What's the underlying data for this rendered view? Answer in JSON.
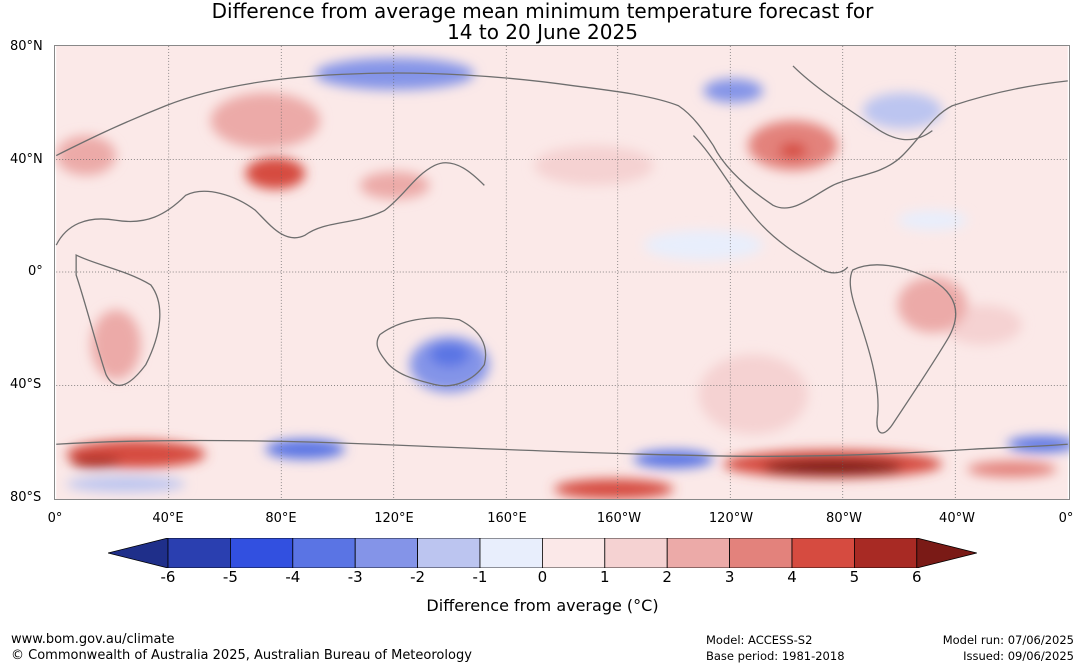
{
  "title_line1": "Difference from average mean minimum temperature forecast for",
  "title_line2": "14 to 20 June 2025",
  "lat_labels": [
    "80°N",
    "40°N",
    "0°",
    "40°S",
    "80°S"
  ],
  "lon_labels": [
    "0°",
    "40°E",
    "80°E",
    "120°E",
    "160°E",
    "160°W",
    "120°W",
    "80°W",
    "40°W",
    "0°"
  ],
  "colorbar": {
    "ticks": [
      "-6",
      "-5",
      "-4",
      "-3",
      "-2",
      "-1",
      "0",
      "1",
      "2",
      "3",
      "4",
      "5",
      "6"
    ],
    "colors": [
      "#1f2f8a",
      "#2a3fb0",
      "#3250e0",
      "#5a74e4",
      "#8494e8",
      "#bcc5f0",
      "#e8eefc",
      "#fbe8e8",
      "#f5d2d2",
      "#ecaaa8",
      "#e3827c",
      "#d64b40",
      "#a82a24",
      "#7a1a16"
    ],
    "label": "Difference from average (°C)"
  },
  "footer": {
    "url": "www.bom.gov.au/climate",
    "copyright": "© Commonwealth of Australia 2025, Australian Bureau of Meteorology",
    "model": "Model: ACCESS-S2",
    "base_period": "Base period: 1981-2018",
    "model_run": "Model run: 07/06/2025",
    "issued": "Issued: 09/06/2025"
  }
}
